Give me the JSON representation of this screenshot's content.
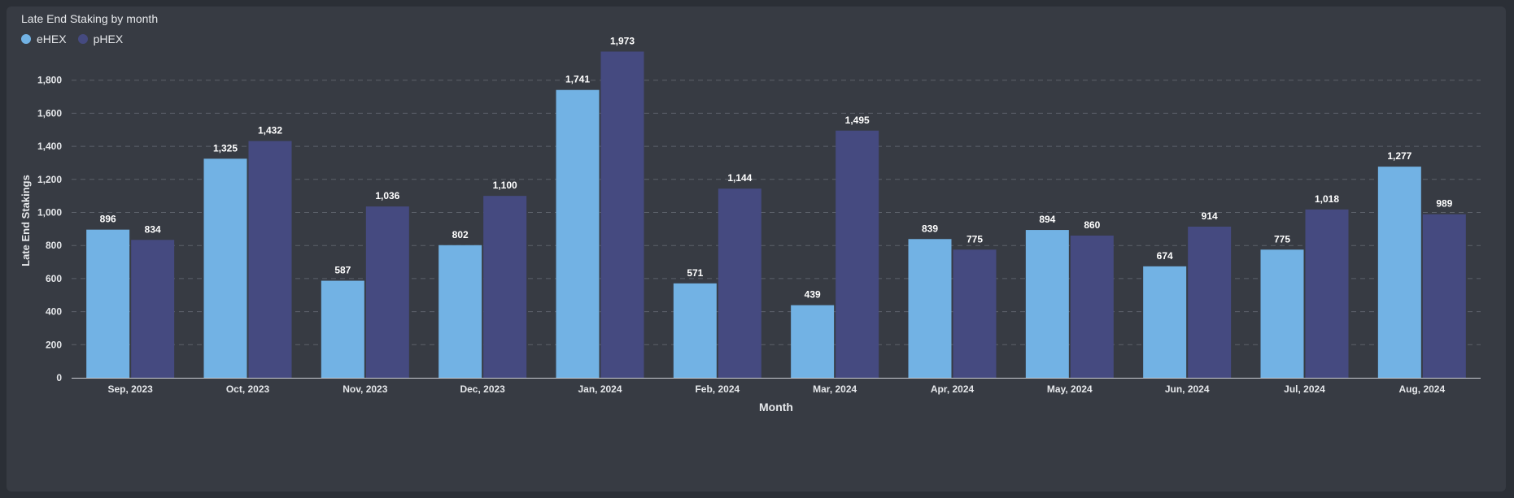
{
  "chart_data": {
    "type": "bar",
    "title": "Late End Staking by month",
    "xlabel": "Month",
    "ylabel": "Late End Stakings",
    "categories": [
      "Sep, 2023",
      "Oct, 2023",
      "Nov, 2023",
      "Dec, 2023",
      "Jan, 2024",
      "Feb, 2024",
      "Mar, 2024",
      "Apr, 2024",
      "May, 2024",
      "Jun, 2024",
      "Jul, 2024",
      "Aug, 2024"
    ],
    "series": [
      {
        "name": "eHEX",
        "color": "#72b2e4",
        "values": [
          896,
          1325,
          587,
          802,
          1741,
          571,
          439,
          839,
          894,
          674,
          775,
          1277
        ]
      },
      {
        "name": "pHEX",
        "color": "#454a80",
        "values": [
          834,
          1432,
          1036,
          1100,
          1973,
          1144,
          1495,
          775,
          860,
          914,
          1018,
          989
        ]
      }
    ],
    "ylim": [
      0,
      2000
    ],
    "yticks": [
      0,
      200,
      400,
      600,
      800,
      1000,
      1200,
      1400,
      1600,
      1800
    ],
    "grid": true,
    "legend_position": "top-left"
  }
}
